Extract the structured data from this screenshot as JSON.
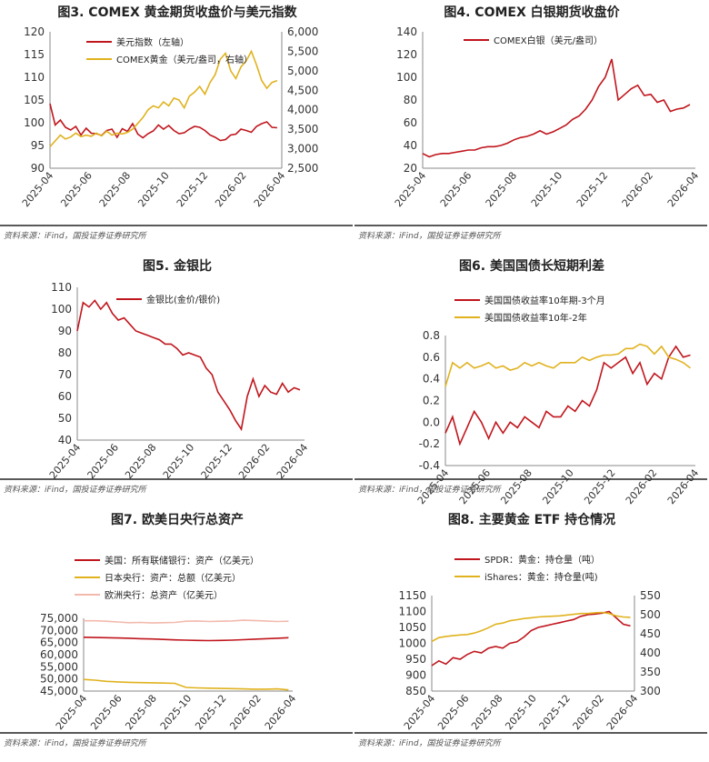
{
  "source_text": "资料来源：iFind，国投证券证券研究所",
  "colors": {
    "red": "#c0161d",
    "gold": "#e0b21e",
    "pink": "#f3b9ad"
  },
  "chart_data": [
    {
      "type": "line",
      "title": "图3. COMEX 黄金期货收盘价与美元指数",
      "x_ticks": [
        "2025-04",
        "2025-06",
        "2025-08",
        "2025-10",
        "2025-12",
        "2026-02",
        "2026-04"
      ],
      "ylim": [
        90,
        120
      ],
      "y_ticks": [
        "90",
        "95",
        "100",
        "105",
        "110",
        "115",
        "120"
      ],
      "y2lim": [
        2500,
        6000
      ],
      "y2_ticks": [
        "2,500",
        "3,000",
        "3,500",
        "4,000",
        "4,500",
        "5,000",
        "5,500",
        "6,000"
      ],
      "series": [
        {
          "name": "美元指数（左轴）",
          "color": "#c0161d",
          "axis": "left",
          "values": [
            104.2,
            99.5,
            100.6,
            99.0,
            98.4,
            99.2,
            97.3,
            98.8,
            97.7,
            97.6,
            97.2,
            98.3,
            98.6,
            96.8,
            98.7,
            98.1,
            99.8,
            97.5,
            96.7,
            97.6,
            98.2,
            99.5,
            98.6,
            99.4,
            98.3,
            97.6,
            97.8,
            98.6,
            99.2,
            99.0,
            98.3,
            97.3,
            96.8,
            96.1,
            96.3,
            97.3,
            97.5,
            98.6,
            98.3,
            97.9,
            99.2,
            99.8,
            100.2,
            99.0,
            98.9
          ]
        },
        {
          "name": "COMEX黄金（美元/盎司，右轴）",
          "color": "#e0b21e",
          "axis": "right",
          "values": [
            3050,
            3200,
            3350,
            3250,
            3300,
            3400,
            3310,
            3350,
            3320,
            3400,
            3330,
            3450,
            3350,
            3400,
            3380,
            3420,
            3500,
            3650,
            3800,
            4000,
            4100,
            4050,
            4200,
            4100,
            4300,
            4250,
            4050,
            4350,
            4450,
            4600,
            4400,
            4700,
            4900,
            5300,
            5450,
            5000,
            4800,
            5100,
            5250,
            5500,
            5150,
            4750,
            4550,
            4700,
            4750
          ]
        }
      ]
    },
    {
      "type": "line",
      "title": "图4. COMEX 白银期货收盘价",
      "x_ticks": [
        "2025-04",
        "2025-06",
        "2025-08",
        "2025-10",
        "2025-12",
        "2026-02",
        "2026-04"
      ],
      "ylim": [
        20,
        140
      ],
      "y_ticks": [
        "20",
        "40",
        "60",
        "80",
        "100",
        "120",
        "140"
      ],
      "series": [
        {
          "name": "COMEX白银（美元/盎司）",
          "color": "#c0161d",
          "values": [
            33,
            30,
            32,
            33,
            33,
            34,
            35,
            36,
            36,
            38,
            39,
            39,
            40,
            42,
            45,
            47,
            48,
            50,
            53,
            50,
            52,
            55,
            58,
            63,
            66,
            72,
            80,
            92,
            100,
            116,
            80,
            85,
            90,
            93,
            84,
            85,
            78,
            80,
            70,
            72,
            73,
            76
          ]
        }
      ]
    },
    {
      "type": "line",
      "title": "图5. 金银比",
      "x_ticks": [
        "2025-04",
        "2025-06",
        "2025-08",
        "2025-10",
        "2025-12",
        "2026-02",
        "2026-04"
      ],
      "ylim": [
        40,
        110
      ],
      "y_ticks": [
        "40",
        "50",
        "60",
        "70",
        "80",
        "90",
        "100",
        "110"
      ],
      "series": [
        {
          "name": "金银比(金价/银价)",
          "color": "#c0161d",
          "values": [
            90,
            103,
            101,
            104,
            100,
            103,
            98,
            95,
            96,
            93,
            90,
            89,
            88,
            87,
            86,
            84,
            84,
            82,
            79,
            80,
            79,
            78,
            73,
            70,
            62,
            58,
            54,
            49,
            45,
            60,
            68,
            60,
            65,
            62,
            61,
            66,
            62,
            64,
            63
          ]
        }
      ]
    },
    {
      "type": "line",
      "title": "图6. 美国国债长短期利差",
      "x_ticks": [
        "2025-04",
        "2025-06",
        "2025-08",
        "2025-10",
        "2025-12",
        "2026-02",
        "2026-04"
      ],
      "ylim": [
        -0.4,
        0.8
      ],
      "y_ticks": [
        "-0.4",
        "-0.2",
        "0.0",
        "0.2",
        "0.4",
        "0.6",
        "0.8"
      ],
      "series": [
        {
          "name": "美国国债收益率10年期-3个月",
          "color": "#c0161d",
          "values": [
            -0.1,
            0.05,
            -0.2,
            -0.05,
            0.1,
            0.0,
            -0.15,
            0.0,
            -0.1,
            0.0,
            -0.05,
            0.05,
            0.0,
            -0.05,
            0.1,
            0.05,
            0.05,
            0.15,
            0.1,
            0.2,
            0.15,
            0.3,
            0.55,
            0.5,
            0.55,
            0.6,
            0.45,
            0.55,
            0.35,
            0.45,
            0.4,
            0.6,
            0.7,
            0.6,
            0.62
          ]
        },
        {
          "name": "美国国债收益率10年-2年",
          "color": "#e0b21e",
          "values": [
            0.33,
            0.55,
            0.5,
            0.55,
            0.5,
            0.52,
            0.55,
            0.5,
            0.52,
            0.48,
            0.5,
            0.55,
            0.52,
            0.55,
            0.52,
            0.5,
            0.55,
            0.55,
            0.55,
            0.6,
            0.57,
            0.6,
            0.62,
            0.62,
            0.63,
            0.68,
            0.68,
            0.72,
            0.7,
            0.63,
            0.7,
            0.6,
            0.58,
            0.55,
            0.5
          ]
        }
      ]
    },
    {
      "type": "line",
      "title": "图7. 欧美日央行总资产",
      "x_ticks": [
        "2025-04",
        "2025-06",
        "2025-08",
        "2025-10",
        "2025-12",
        "2026-02",
        "2026-04"
      ],
      "ylim": [
        45000,
        75000
      ],
      "y_ticks": [
        "45,000",
        "50,000",
        "55,000",
        "60,000",
        "65,000",
        "70,000",
        "75,000"
      ],
      "series": [
        {
          "name": "美国：所有联储银行：资产（亿美元）",
          "color": "#c0161d",
          "values": [
            67200,
            67100,
            67000,
            66900,
            66800,
            66600,
            66500,
            66300,
            66100,
            66000,
            65900,
            65800,
            65900,
            66000,
            66200,
            66400,
            66600,
            66800,
            67000
          ]
        },
        {
          "name": "日本央行：资产：总额（亿美元）",
          "color": "#e0b21e",
          "values": [
            49800,
            49500,
            49000,
            48800,
            48600,
            48500,
            48400,
            48300,
            48200,
            46500,
            46300,
            46200,
            46100,
            46000,
            45900,
            45800,
            45800,
            45900,
            45500
          ]
        },
        {
          "name": "欧洲央行：总资产（亿美元）",
          "color": "#f3b9ad",
          "values": [
            74000,
            74000,
            73800,
            73500,
            73200,
            73300,
            73100,
            73200,
            73300,
            73800,
            73900,
            73700,
            73800,
            73900,
            74200,
            74100,
            73900,
            73700,
            73800
          ]
        }
      ]
    },
    {
      "type": "line",
      "title": "图8. 主要黄金 ETF 持仓情况",
      "x_ticks": [
        "2025-04",
        "2025-06",
        "2025-08",
        "2025-10",
        "2025-12",
        "2026-02",
        "2026-04"
      ],
      "ylim": [
        850,
        1150
      ],
      "y_ticks": [
        "850",
        "900",
        "950",
        "1000",
        "1050",
        "1100",
        "1150"
      ],
      "y2lim": [
        300,
        550
      ],
      "y2_ticks": [
        "300",
        "350",
        "400",
        "450",
        "500",
        "550"
      ],
      "series": [
        {
          "name": "SPDR：黄金：持仓量（吨）",
          "color": "#c0161d",
          "axis": "left",
          "values": [
            930,
            945,
            935,
            955,
            950,
            965,
            975,
            970,
            985,
            990,
            985,
            1000,
            1005,
            1020,
            1040,
            1050,
            1055,
            1060,
            1065,
            1070,
            1075,
            1085,
            1090,
            1092,
            1095,
            1100,
            1080,
            1060,
            1055
          ]
        },
        {
          "name": "iShares：黄金：持仓量(吨)",
          "color": "#e0b21e",
          "axis": "right",
          "values": [
            430,
            440,
            443,
            445,
            447,
            448,
            452,
            458,
            466,
            475,
            478,
            484,
            487,
            490,
            492,
            494,
            495,
            496,
            497,
            499,
            501,
            503,
            503,
            505,
            506,
            503,
            497,
            494,
            493
          ]
        }
      ]
    }
  ]
}
